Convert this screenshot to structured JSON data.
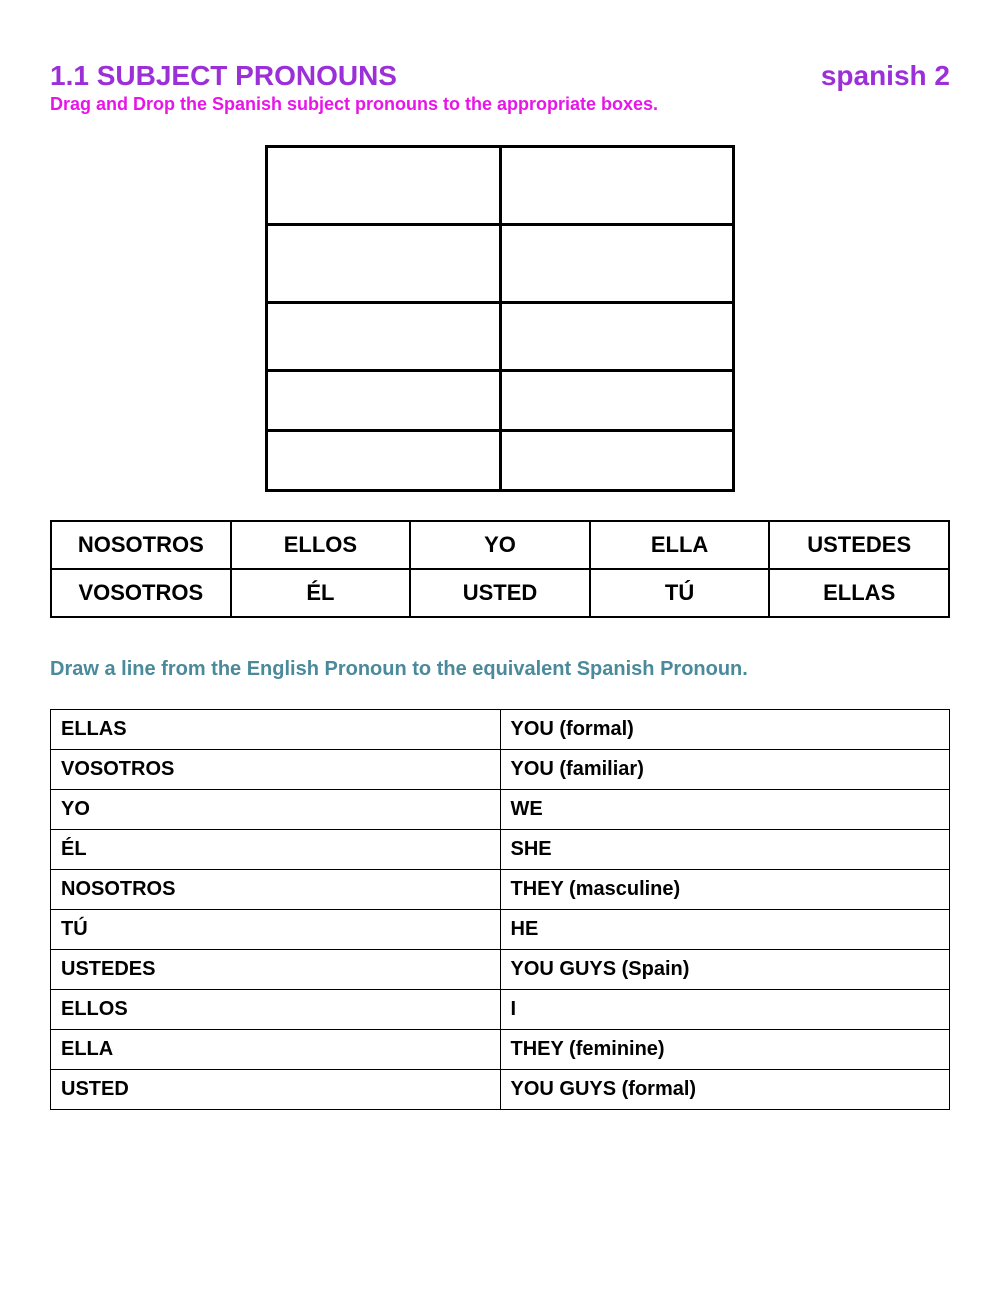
{
  "colors": {
    "title": "#9b30d9",
    "course": "#9b30d9",
    "instruction1": "#e815e8",
    "instruction2": "#4a8a9b",
    "border": "#000000",
    "background": "#ffffff"
  },
  "header": {
    "title": "1.1 SUBJECT PRONOUNS",
    "course": "spanish 2"
  },
  "instruction1": "Drag and Drop the Spanish subject pronouns to the appropriate boxes.",
  "dropGrid": {
    "rows": 5,
    "cols": 2,
    "rowHeights": [
      "tall",
      "tall",
      "normal",
      "short",
      "short"
    ]
  },
  "dragItems": {
    "row1": [
      "NOSOTROS",
      "ELLOS",
      "YO",
      "ELLA",
      "USTEDES"
    ],
    "row2": [
      "VOSOTROS",
      "ÉL",
      "USTED",
      "TÚ",
      "ELLAS"
    ]
  },
  "instruction2": "Draw a line from the English Pronoun to the equivalent Spanish Pronoun.",
  "matchRows": [
    {
      "left": "ELLAS",
      "right": "YOU (formal)"
    },
    {
      "left": "VOSOTROS",
      "right": "YOU (familiar)"
    },
    {
      "left": "YO",
      "right": "WE"
    },
    {
      "left": "ÉL",
      "right": "SHE"
    },
    {
      "left": "NOSOTROS",
      "right": "THEY (masculine)"
    },
    {
      "left": "TÚ",
      "right": "HE"
    },
    {
      "left": "USTEDES",
      "right": "YOU GUYS (Spain)"
    },
    {
      "left": "ELLOS",
      "right": "I"
    },
    {
      "left": "ELLA",
      "right": "THEY (feminine)"
    },
    {
      "left": "USTED",
      "right": "YOU GUYS (formal)"
    }
  ]
}
